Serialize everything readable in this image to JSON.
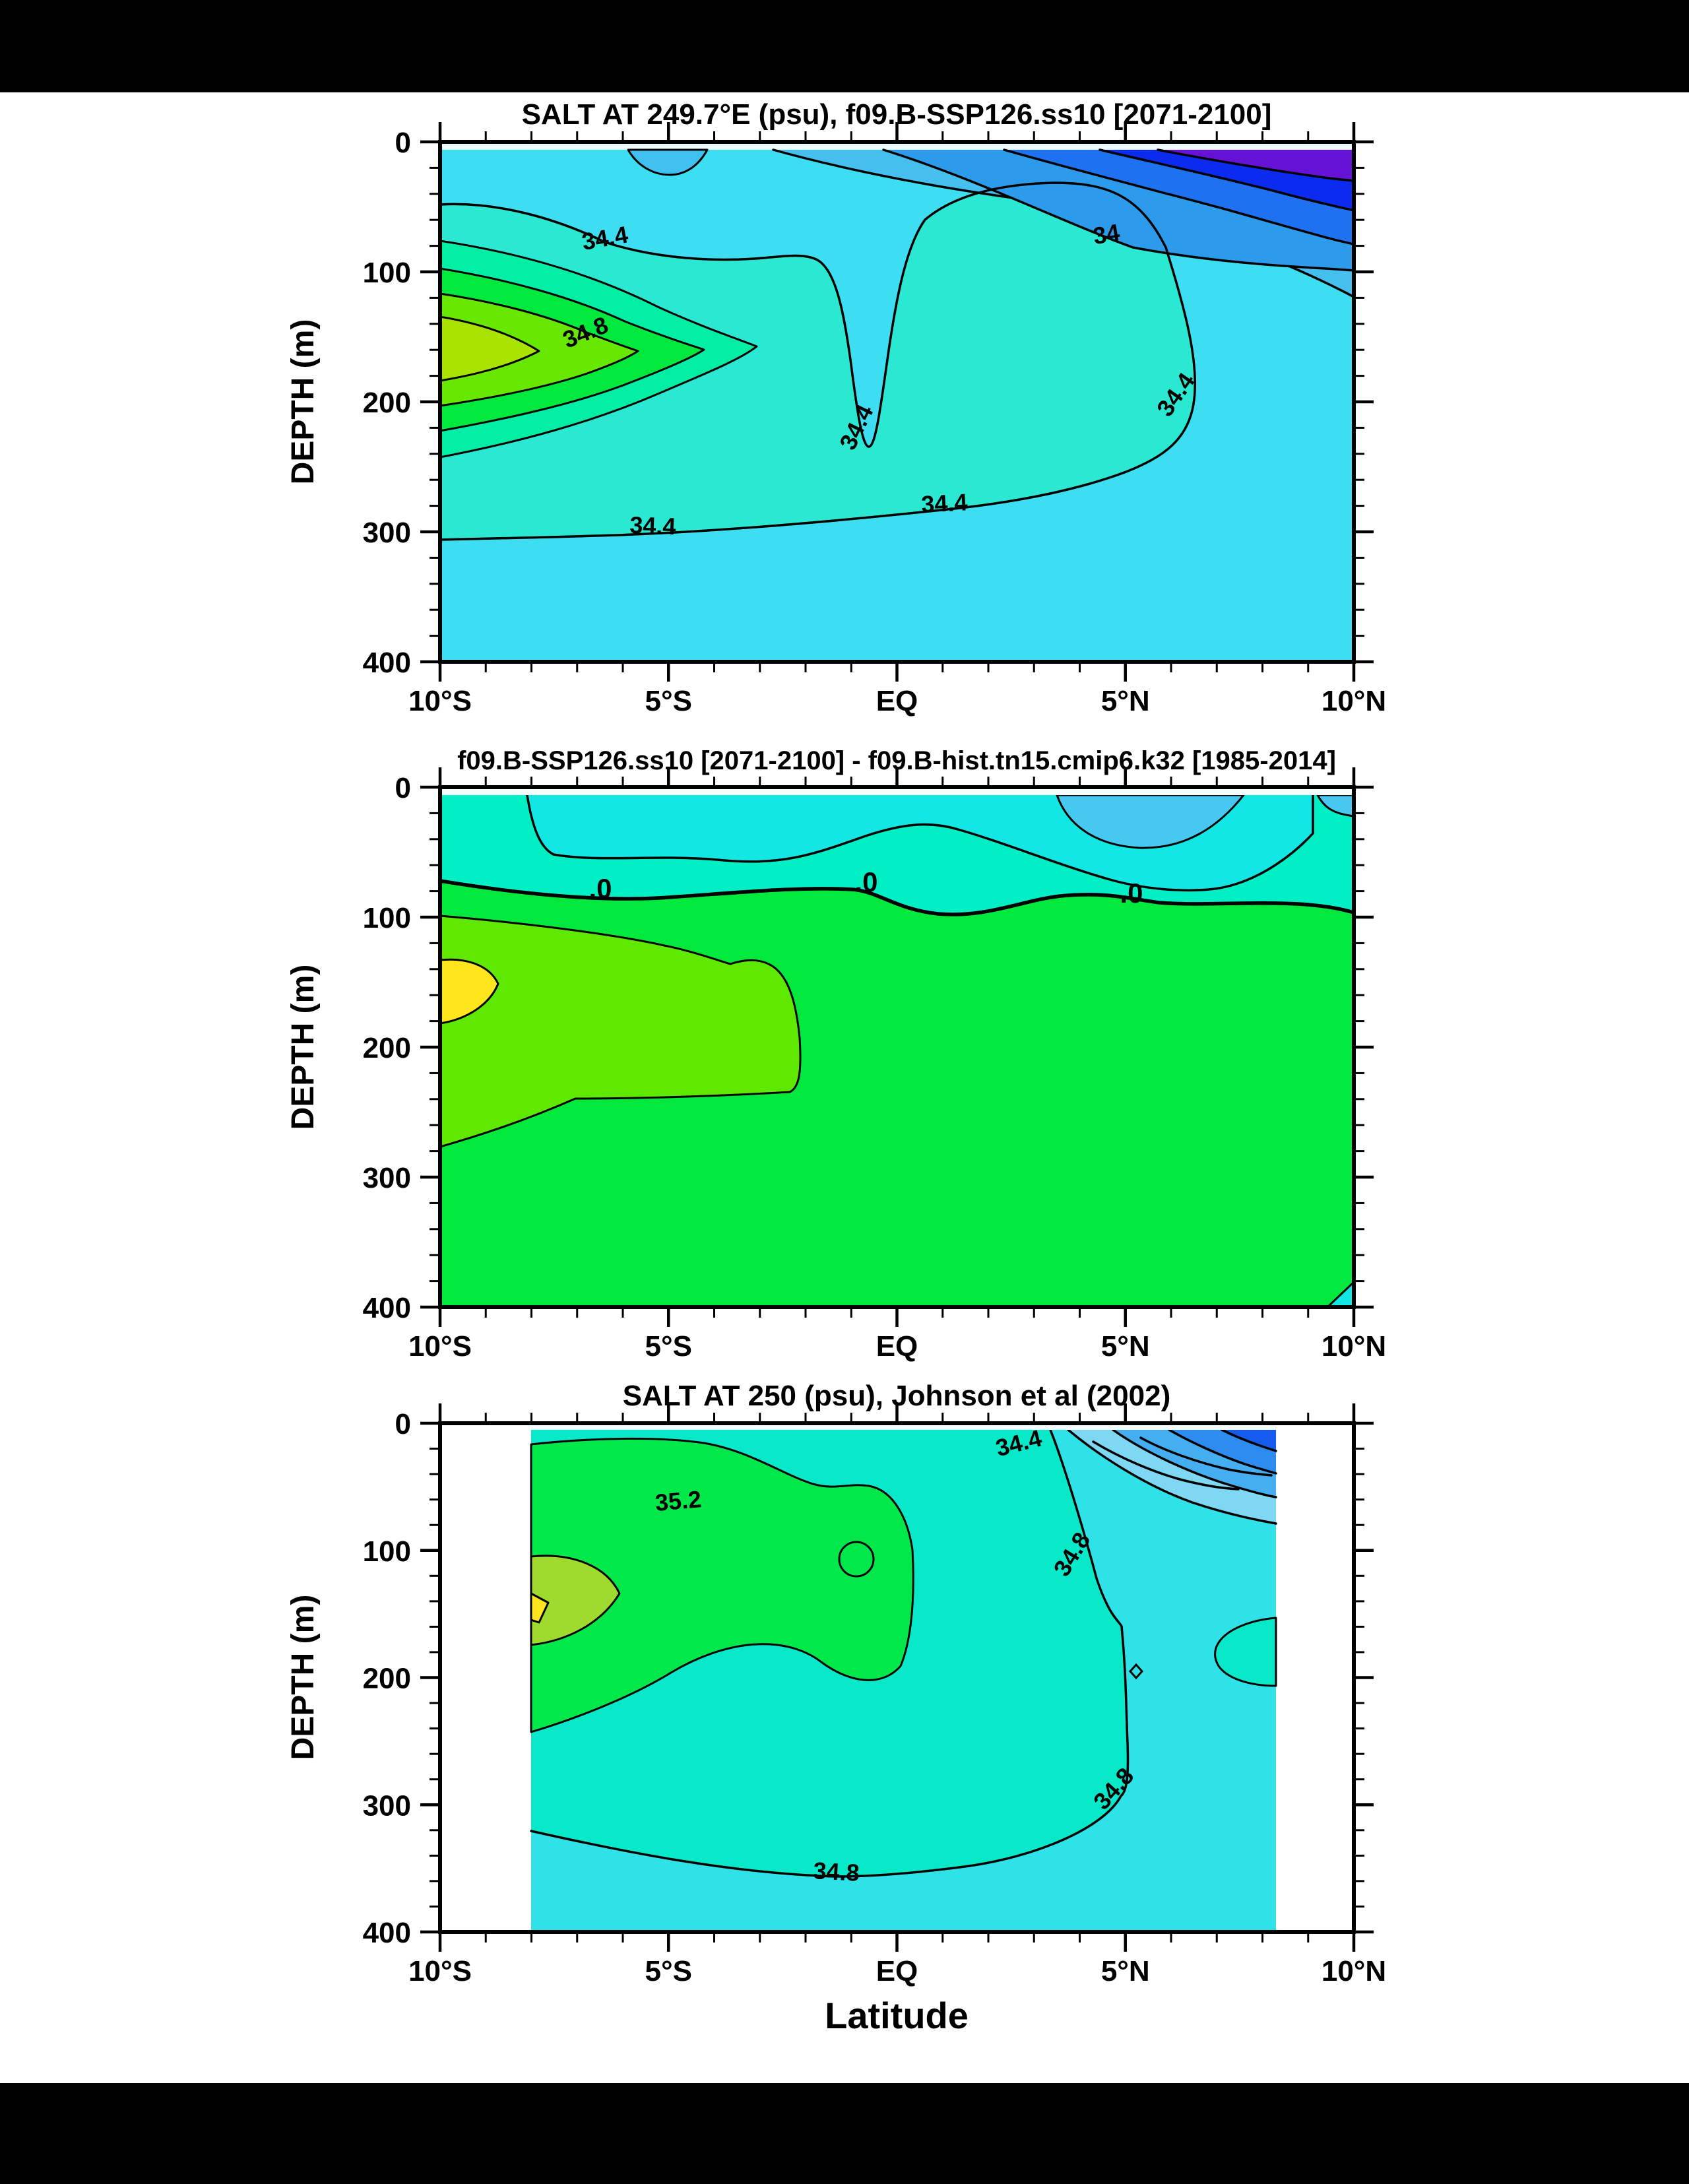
{
  "figure": {
    "background": "#ffffff",
    "frame_color": "#000000"
  },
  "panels": [
    {
      "title": "SALT AT 249.7°E (psu), f09.B-SSP126.ss10 [2071-2100]",
      "y_axis_title": "DEPTH (m)",
      "y_tick_labels": [
        "0",
        "100",
        "200",
        "300",
        "400"
      ],
      "x_tick_labels": [
        "10°S",
        "5°S",
        "EQ",
        "5°N",
        "10°N"
      ],
      "contour_labels": [
        {
          "text": "34.4",
          "lat": -6.4,
          "depth_m": 78
        },
        {
          "text": "34.8",
          "lat": -6.8,
          "depth_m": 150
        },
        {
          "text": "34.4",
          "lat": -0.7,
          "depth_m": 224
        },
        {
          "text": "34",
          "lat": 4.6,
          "depth_m": 75
        },
        {
          "text": "34.4",
          "lat": 6.2,
          "depth_m": 196
        },
        {
          "text": "34.4",
          "lat": -5.3,
          "depth_m": 300
        },
        {
          "text": "34.4",
          "lat": 1.0,
          "depth_m": 285
        }
      ]
    },
    {
      "title": "f09.B-SSP126.ss10 [2071-2100] - f09.B-hist.tn15.cmip6.k32 [1985-2014]",
      "y_axis_title": "DEPTH (m)",
      "y_tick_labels": [
        "0",
        "100",
        "200",
        "300",
        "400"
      ],
      "x_tick_labels": [
        "10°S",
        "5°S",
        "EQ",
        "5°N",
        "10°N"
      ],
      "contour_labels": [
        {
          "text": ".0",
          "lat": -6.5,
          "depth_m": 82
        },
        {
          "text": ".0",
          "lat": -0.7,
          "depth_m": 80
        },
        {
          "text": ".0",
          "lat": 5.1,
          "depth_m": 88
        }
      ]
    },
    {
      "title": "SALT AT 250 (psu), Johnson et al (2002)",
      "y_axis_title": "DEPTH (m)",
      "x_axis_title": "Latitude",
      "y_tick_labels": [
        "0",
        "100",
        "200",
        "300",
        "400"
      ],
      "x_tick_labels": [
        "10°S",
        "5°S",
        "EQ",
        "5°N",
        "10°N"
      ],
      "contour_labels": [
        {
          "text": "35.2",
          "lat": -4.8,
          "depth_m": 68
        },
        {
          "text": "34.4",
          "lat": 2.7,
          "depth_m": 20
        },
        {
          "text": "34.8",
          "lat": 4.0,
          "depth_m": 105
        },
        {
          "text": "34.8",
          "lat": 4.9,
          "depth_m": 292
        },
        {
          "text": "34.8",
          "lat": -1.3,
          "depth_m": 358
        }
      ]
    }
  ],
  "chart_data": [
    {
      "type": "contour",
      "title": "SALT AT 249.7°E (psu), f09.B-SSP126.ss10 [2071-2100]",
      "xlabel": "Latitude",
      "ylabel": "DEPTH (m)",
      "units": "psu",
      "x_range_deg": [
        -10,
        10
      ],
      "x_tick_labels": [
        "10°S",
        "5°S",
        "EQ",
        "5°N",
        "10°N"
      ],
      "y_range_m": [
        0,
        400
      ],
      "y_ticks_m": [
        0,
        100,
        200,
        300,
        400
      ],
      "y_minor_step_m": 20,
      "x_minor_step_deg": 1,
      "grid": false,
      "legend": "none",
      "contour_interval_psu": 0.2,
      "labeled_levels_psu": [
        34.0,
        34.4,
        34.8
      ],
      "colormap_low_to_high": [
        "#6611D6",
        "#0B2BEF",
        "#1E72F2",
        "#2D9BEB",
        "#44BFEE",
        "#3EDEF2",
        "#2BE8D2",
        "#00EFA5",
        "#00E93C",
        "#68E800",
        "#A9E300"
      ],
      "features": [
        {
          "name": "fresh surface pool",
          "approx_psu": "<33.4",
          "location": "5N-10N, 0-60 m",
          "color": "purple/dark blue"
        },
        {
          "name": "34 isohaline",
          "location": "runs from ~2N surface layer to 10N at ~110 m"
        },
        {
          "name": "34.4 isohaline",
          "location": "from 10S ~45 m across basin, equatorial trough to ~230 m, down to ~195 m at 5N, returning along ~290-300 m to 10S"
        },
        {
          "name": "salty core >35.4",
          "approx_psu": "35.4-35.6",
          "location": "10S-8S, 120-180 m",
          "color": "yellow-green"
        }
      ]
    },
    {
      "type": "contour",
      "title": "f09.B-SSP126.ss10 [2071-2100] - f09.B-hist.tn15.cmip6.k32 [1985-2014]",
      "xlabel": "Latitude",
      "ylabel": "DEPTH (m)",
      "units": "psu difference",
      "x_range_deg": [
        -10,
        10
      ],
      "x_tick_labels": [
        "10°S",
        "5°S",
        "EQ",
        "5°N",
        "10°N"
      ],
      "y_range_m": [
        0,
        400
      ],
      "y_ticks_m": [
        0,
        100,
        200,
        300,
        400
      ],
      "y_minor_step_m": 20,
      "x_minor_step_deg": 1,
      "grid": false,
      "legend": "none",
      "labeled_levels": [
        0.0
      ],
      "colormap_low_to_high": [
        "#47C8F0",
        "#12E7E4",
        "#00EFC4",
        "#00E93C",
        "#5FE800",
        "#FFE61C"
      ],
      "features": [
        {
          "name": "zero-change contour",
          "location": "~80-95 m across the basin, labeled .0 three times"
        },
        {
          "name": "freshening near surface",
          "location": "0-80 m everywhere; strongest (light blue) 3N-8N, 0-50 m"
        },
        {
          "name": "salinification below thermocline",
          "location": "below ~90 m; maximum (yellow) 10S-9S, 130-180 m"
        },
        {
          "name": "small negative wedge",
          "location": "10N, 380-400 m"
        }
      ]
    },
    {
      "type": "contour",
      "title": "SALT AT 250 (psu), Johnson et al (2002)",
      "xlabel": "Latitude",
      "ylabel": "DEPTH (m)",
      "units": "psu",
      "x_range_deg": [
        -10,
        10
      ],
      "data_extent_deg": [
        -8,
        8.3
      ],
      "x_tick_labels": [
        "10°S",
        "5°S",
        "EQ",
        "5°N",
        "10°N"
      ],
      "y_range_m": [
        0,
        400
      ],
      "y_ticks_m": [
        0,
        100,
        200,
        300,
        400
      ],
      "y_minor_step_m": 20,
      "x_minor_step_deg": 1,
      "grid": false,
      "legend": "none",
      "contour_interval_psu": 0.2,
      "labeled_levels_psu": [
        34.4,
        34.8,
        35.2
      ],
      "colormap_low_to_high": [
        "#155CEE",
        "#2E8CF0",
        "#45AEF0",
        "#7ED8F3",
        "#2FE2E8",
        "#07E9C9",
        "#00E84A",
        "#9FDA2E",
        "#FFE420"
      ],
      "features": [
        {
          "name": "observational data extent",
          "location": "8S to ~8.3N only; white outside"
        },
        {
          "name": "fresh surface stack",
          "approx_psu": "<34.4",
          "location": "3N-8N, 0-120 m",
          "color": "blues"
        },
        {
          "name": "35.2 salty tongue",
          "location": "8S to ~0.5N, 20-190 m, with 35.4+ core (yellow-green) near 8S-6S, 100-175 m"
        },
        {
          "name": "34.8 isohaline",
          "location": "from ~2.3N surface down around 5N to ~300 m, returning along ~355 m toward 8S"
        }
      ]
    }
  ]
}
